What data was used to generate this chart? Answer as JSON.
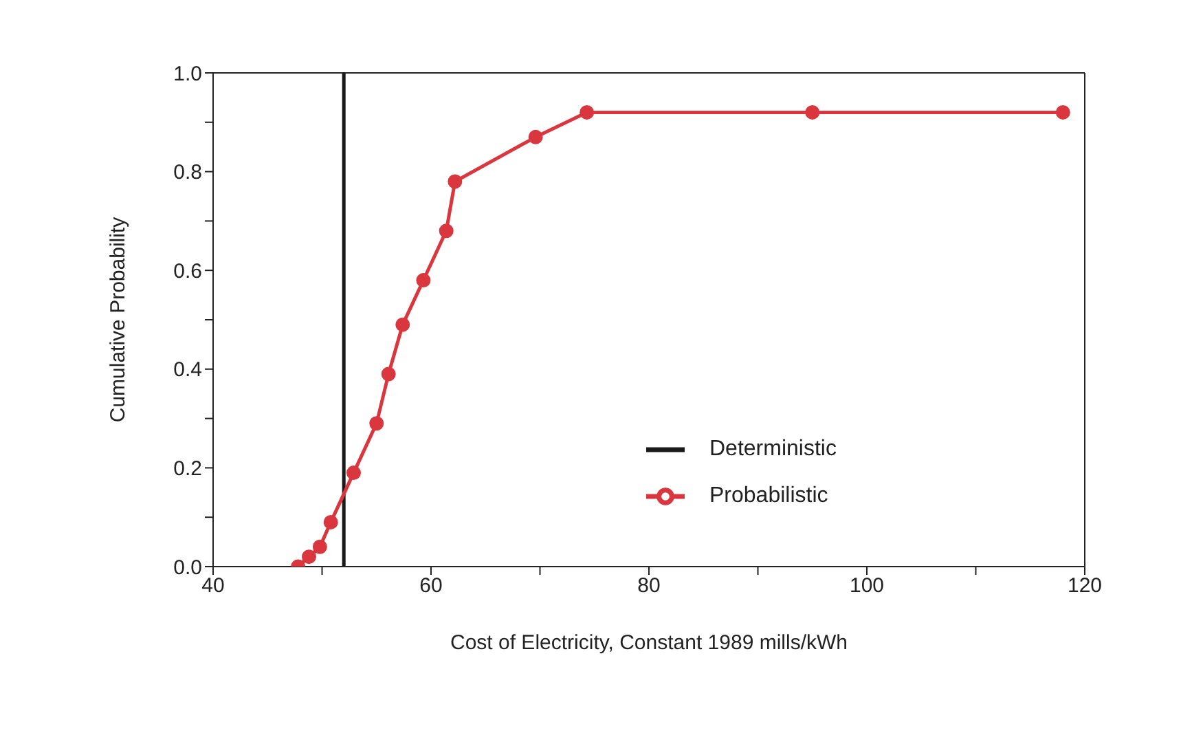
{
  "chart_data": {
    "type": "line",
    "xlabel": "Cost of Electricity, Constant 1989 mills/kWh",
    "ylabel": "Cumulative Probability",
    "xlim": [
      40,
      120
    ],
    "xticks": [
      40,
      {
        "value": 50,
        "label": null
      },
      60,
      {
        "value": 70,
        "label": null
      },
      80,
      {
        "value": 90,
        "label": null
      },
      100,
      {
        "value": 110,
        "label": null
      },
      120
    ],
    "ylim": [
      0,
      1
    ],
    "yticks": [
      {
        "value": 0,
        "label": "0.0"
      },
      {
        "value": 0.1,
        "label": null
      },
      {
        "value": 0.2,
        "label": "0.2"
      },
      {
        "value": 0.3,
        "label": null
      },
      {
        "value": 0.4,
        "label": "0.4"
      },
      {
        "value": 0.5,
        "label": null
      },
      {
        "value": 0.6,
        "label": "0.6"
      },
      {
        "value": 0.7,
        "label": null
      },
      {
        "value": 0.8,
        "label": "0.8"
      },
      {
        "value": 0.9,
        "label": null
      },
      {
        "value": 1,
        "label": "1.0"
      }
    ],
    "grid": false,
    "legend": "bottom right",
    "line_style": "solid",
    "series": [
      {
        "name": "Deterministic",
        "color": "#1a1a1a",
        "marker": "none",
        "x": [
          52,
          52
        ],
        "values": [
          0,
          1
        ]
      },
      {
        "name": "Probabilistic",
        "color": "#d9363e",
        "marker": "circle",
        "x": [
          47.8,
          48.8,
          49.8,
          50.8,
          52.9,
          55,
          56.1,
          57.4,
          59.3,
          61.4,
          62.2,
          69.6,
          74.3,
          95,
          118
        ],
        "values": [
          0,
          0.02,
          0.04,
          0.09,
          0.19,
          0.29,
          0.39,
          0.49,
          0.58,
          0.68,
          0.78,
          0.87,
          0.92,
          0.92,
          0.92
        ]
      }
    ]
  }
}
